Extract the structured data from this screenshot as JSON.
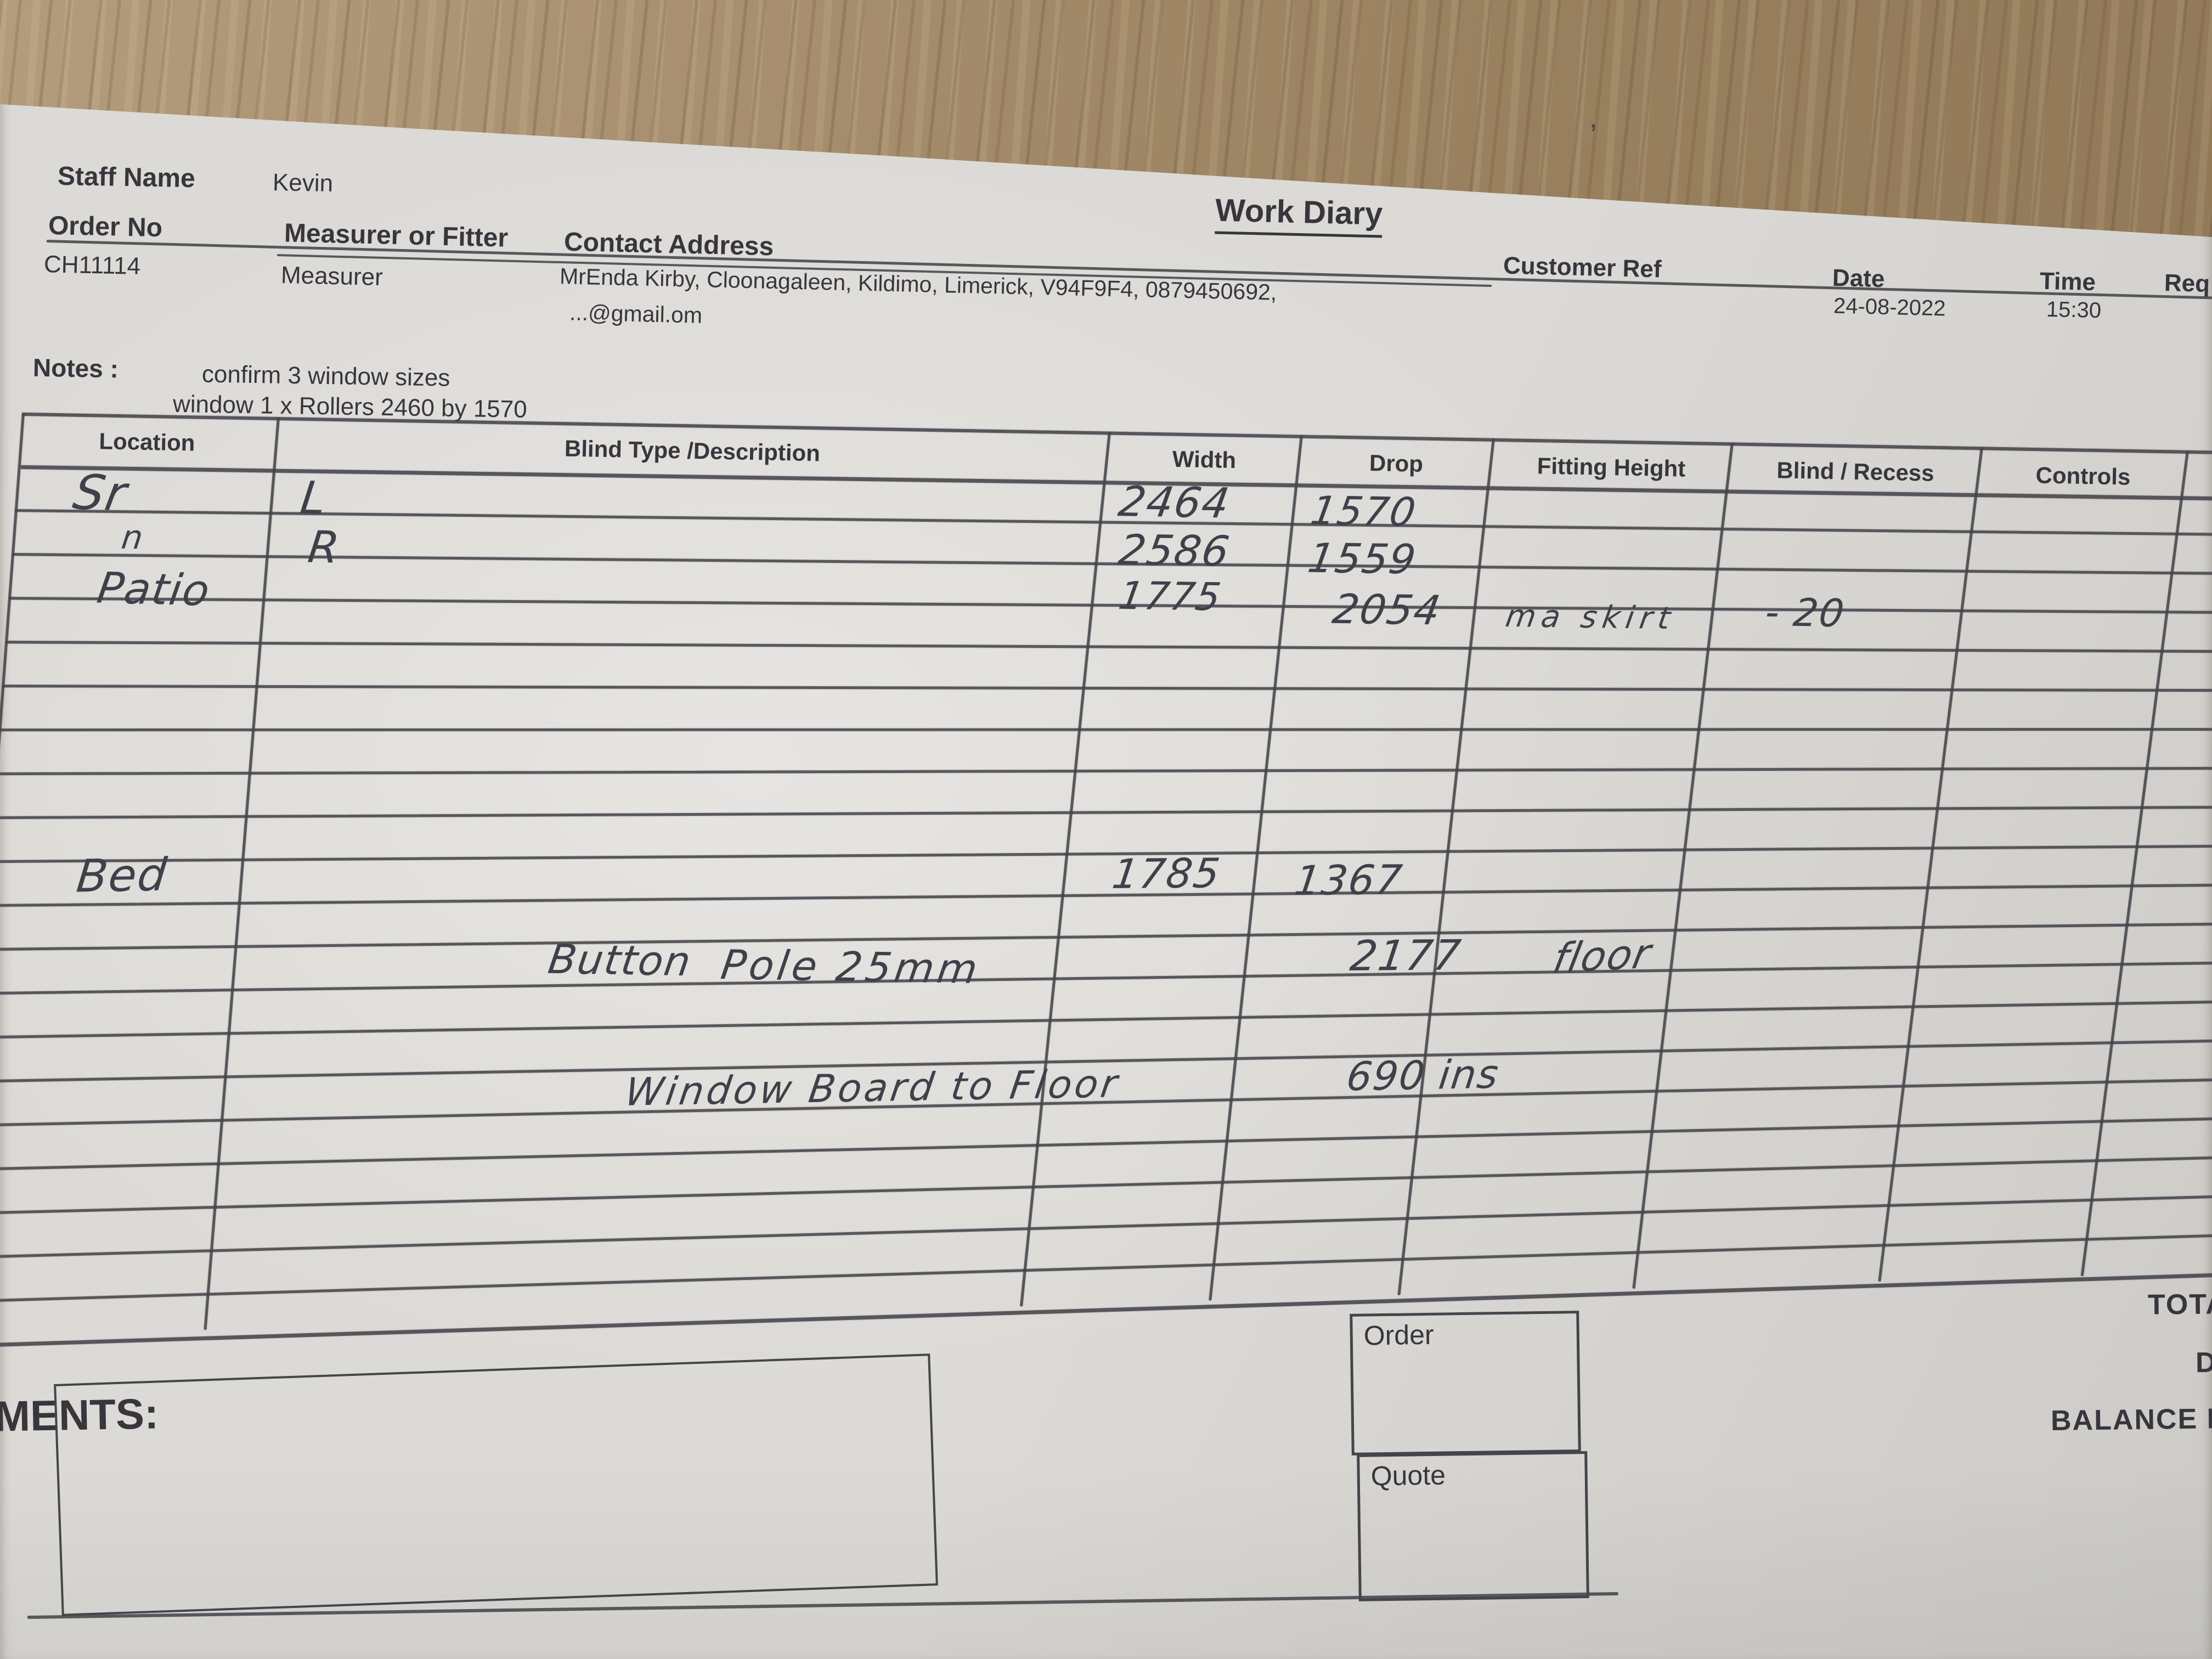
{
  "form": {
    "staff_name": {
      "label": "Staff Name",
      "value": "Kevin"
    },
    "order_no": {
      "label": "Order No",
      "value": "CH11114"
    },
    "measurer_or_fitter": {
      "label": "Measurer or Fitter",
      "value": "Measurer"
    },
    "contact_address": {
      "label": "Contact Address",
      "value_line1": "MrEnda Kirby, Cloonagaleen, Kildimo, Limerick, V94F9F4, 0879450692,",
      "value_line2": "...@gmail.om"
    },
    "title": "Work Diary",
    "pen_mark": "’",
    "customer_ref_label": "Customer Ref",
    "date": {
      "label": "Date",
      "value": "24-08-2022"
    },
    "time": {
      "label": "Time",
      "value": "15:30"
    },
    "required_label_cut": "Req"
  },
  "notes": {
    "label": "Notes :",
    "line1": "confirm 3 window sizes",
    "line2": "window 1 x Rollers 2460 by 1570"
  },
  "table": {
    "headers": [
      "Location",
      "Blind Type /Description",
      "Width",
      "Drop",
      "Fitting Height",
      "Blind / Recess",
      "Controls"
    ],
    "entries": [
      {
        "cell": "row1-location",
        "text": "Sr"
      },
      {
        "cell": "row1-description",
        "text": "L"
      },
      {
        "cell": "row1-width",
        "text": "2464"
      },
      {
        "cell": "row1-drop",
        "text": "1570"
      },
      {
        "cell": "row2-location-ditto",
        "text": "n"
      },
      {
        "cell": "row2-description",
        "text": "R"
      },
      {
        "cell": "row2-width",
        "text": "2586"
      },
      {
        "cell": "row2-drop",
        "text": "1559"
      },
      {
        "cell": "row3-location",
        "text": "Patio"
      },
      {
        "cell": "row3-width",
        "text": "1775"
      },
      {
        "cell": "row3-drop",
        "text": "2054"
      },
      {
        "cell": "row3-fitting-height",
        "text": "ma skirt"
      },
      {
        "cell": "row3-blind-recess",
        "text": "- 20"
      },
      {
        "cell": "row9-location",
        "text": "Bed"
      },
      {
        "cell": "row9-width",
        "text": "1785"
      },
      {
        "cell": "row9-drop",
        "text": "1367"
      },
      {
        "cell": "row11-description",
        "text": "Button"
      },
      {
        "cell": "row11-description-2",
        "text": "Pole 25mm"
      },
      {
        "cell": "row11-drop",
        "text": "2177"
      },
      {
        "cell": "row11-fitting-height",
        "text": "floor"
      },
      {
        "cell": "row14-description",
        "text": "Window Board to Floor"
      },
      {
        "cell": "row14-drop",
        "text": "690 ins"
      }
    ]
  },
  "footer": {
    "comments_label_cut": "MENTS:",
    "order_box_label": "Order",
    "quote_box_label": "Quote",
    "total_label_cut": "TOTA",
    "deposit_label_cut": "D",
    "balance_label_cut": "BALANCE D"
  }
}
